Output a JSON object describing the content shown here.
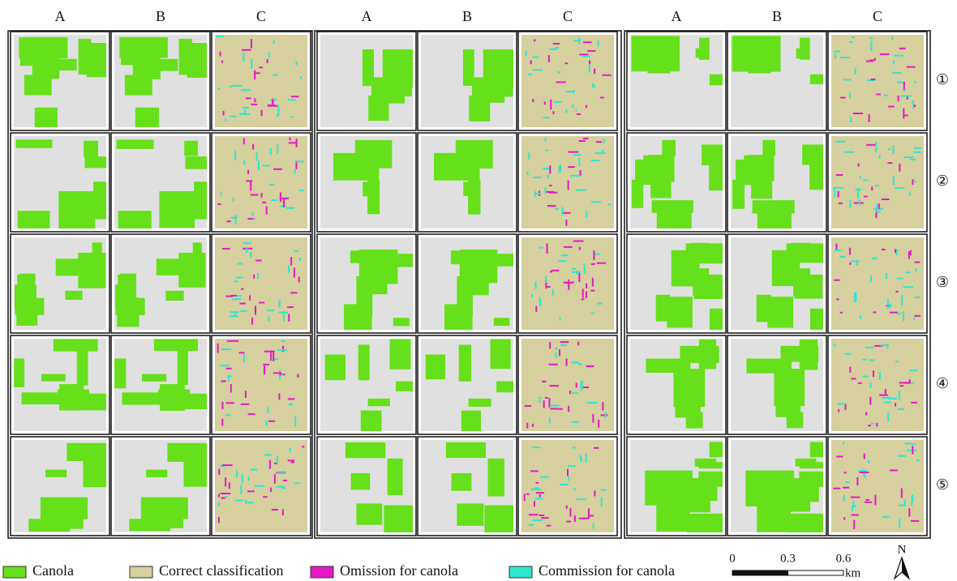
{
  "column_groups": [
    {
      "columns": [
        "A",
        "B",
        "C"
      ]
    },
    {
      "columns": [
        "A",
        "B",
        "C"
      ]
    },
    {
      "columns": [
        "A",
        "B",
        "C"
      ]
    }
  ],
  "row_labels": [
    "①",
    "②",
    "③",
    "④",
    "⑤"
  ],
  "legend": [
    {
      "label": "Canola",
      "color": "#66e01a"
    },
    {
      "label": "Correct classification",
      "color": "#d6cf9e"
    },
    {
      "label": "Omission for canola",
      "color": "#e619c8"
    },
    {
      "label": "Commission for canola",
      "color": "#2ee6d0"
    }
  ],
  "scale_bar": {
    "ticks": [
      0,
      0.3,
      0.6
    ],
    "unit": "km"
  },
  "north_arrow": "N"
}
